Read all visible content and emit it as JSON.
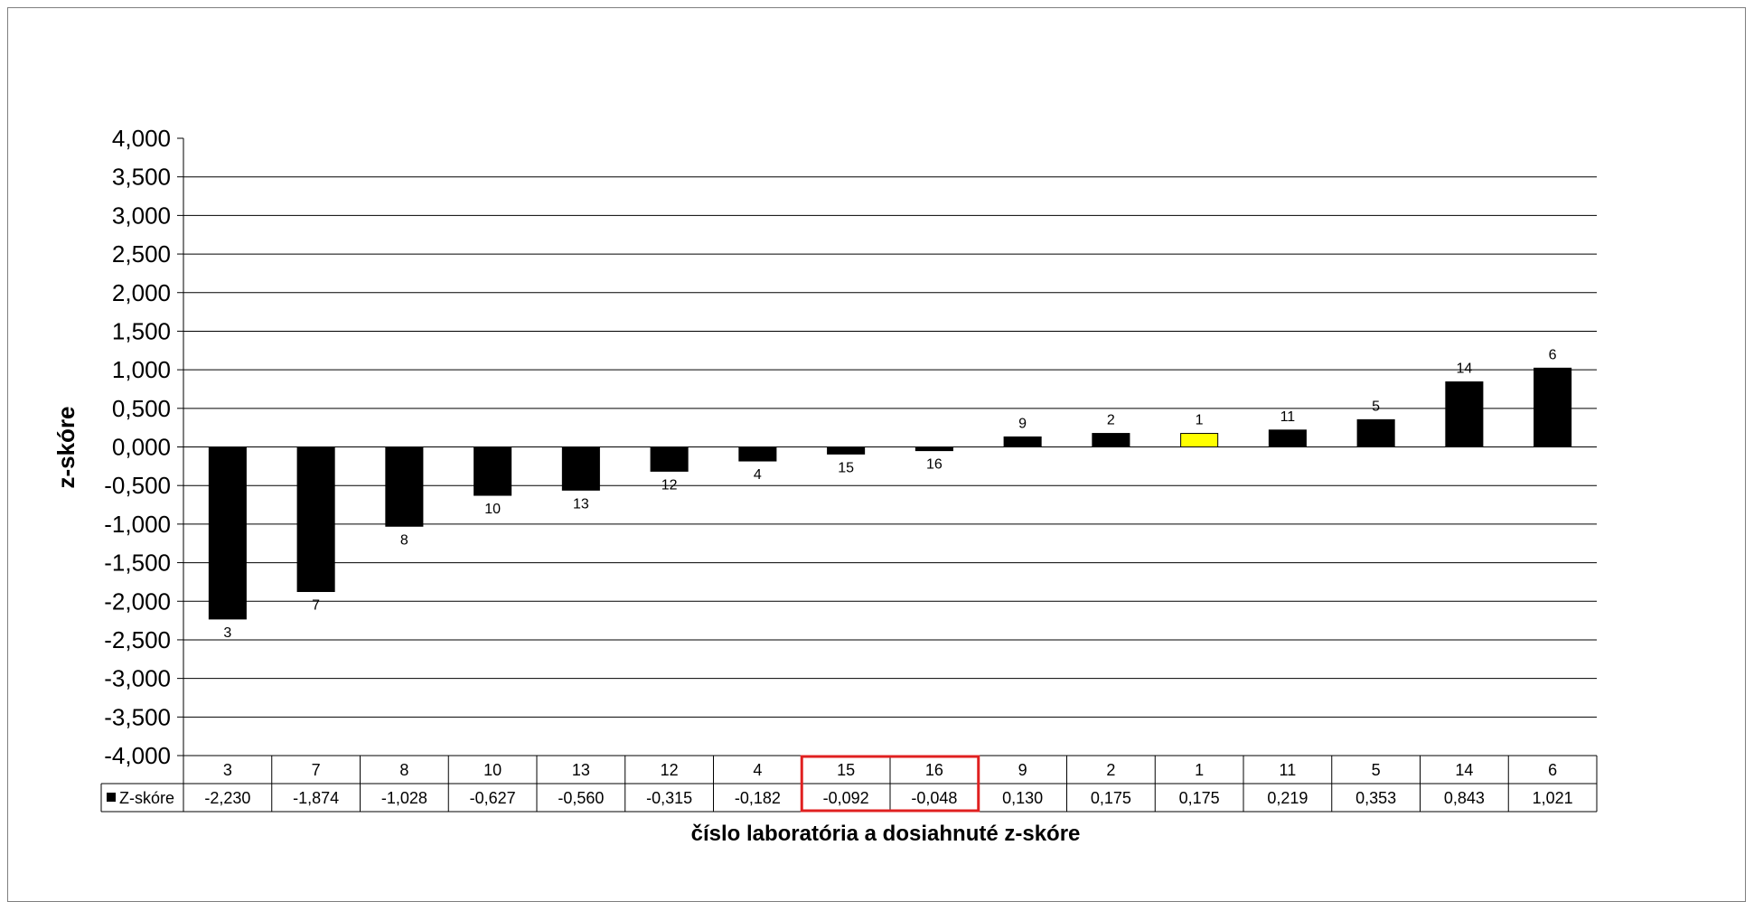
{
  "chart_data": {
    "type": "bar",
    "categories": [
      "3",
      "7",
      "8",
      "10",
      "13",
      "12",
      "4",
      "15",
      "16",
      "9",
      "2",
      "1",
      "11",
      "5",
      "14",
      "6"
    ],
    "series": [
      {
        "name": "Z-skóre",
        "values": [
          -2.23,
          -1.874,
          -1.028,
          -0.627,
          -0.56,
          -0.315,
          -0.182,
          -0.092,
          -0.048,
          0.13,
          0.175,
          0.175,
          0.219,
          0.353,
          0.843,
          1.021
        ],
        "value_labels": [
          "-2,230",
          "-1,874",
          "-1,028",
          "-0,627",
          "-0,560",
          "-0,315",
          "-0,182",
          "-0,092",
          "-0,048",
          "0,130",
          "0,175",
          "0,175",
          "0,219",
          "0,353",
          "0,843",
          "1,021"
        ]
      }
    ],
    "ylabel": "z-skóre",
    "xlabel": "číslo laboratória a dosiahnuté z-skóre",
    "ylim": [
      -4,
      4
    ],
    "ytick_step": 0.5,
    "ytick_labels": [
      "4,000",
      "3,500",
      "3,000",
      "2,500",
      "2,000",
      "1,500",
      "1,000",
      "0,500",
      "0,000",
      "-0,500",
      "-1,000",
      "-1,500",
      "-2,000",
      "-2,500",
      "-3,000",
      "-3,500",
      "-4,000"
    ],
    "grid": true,
    "legend": "data-table",
    "bar_color": "#000000",
    "highlight_category": "1",
    "highlight_color": "#ffff00",
    "boxed_categories": [
      "15",
      "16"
    ],
    "box_color": "#e02020"
  }
}
